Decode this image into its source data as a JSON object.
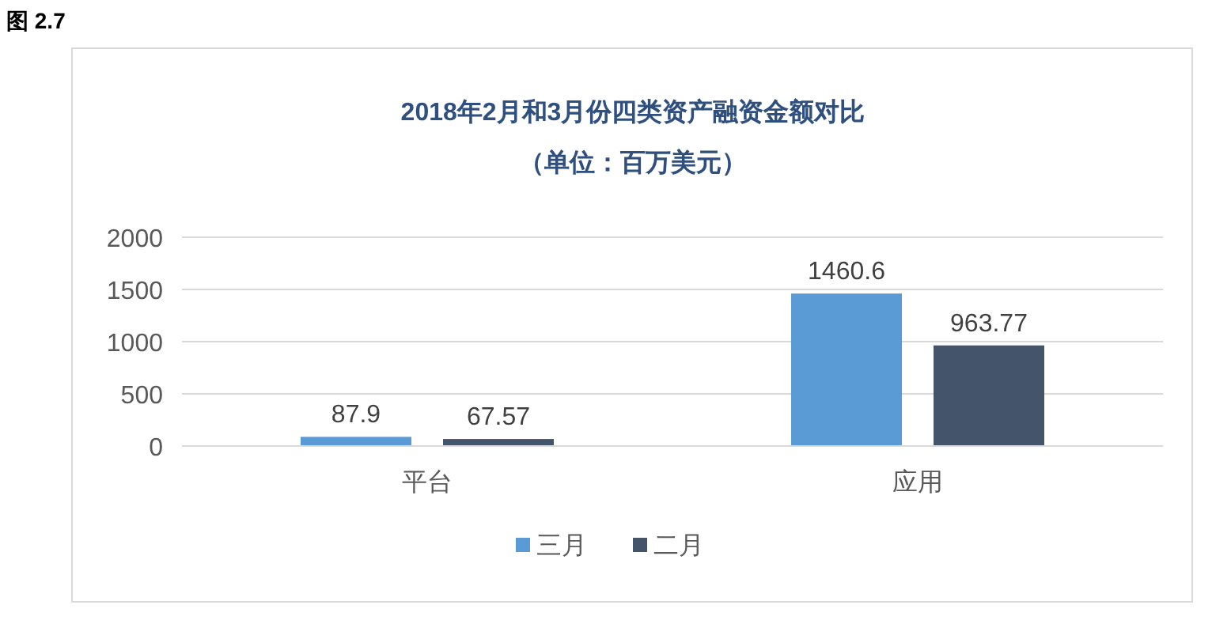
{
  "chart_data": {
    "type": "bar",
    "title": "2018年2月和3月份四类资产融资金额对比",
    "subtitle": "（单位：百万美元）",
    "annotations": [
      "图 2.7"
    ],
    "categories": [
      "平台",
      "应用"
    ],
    "series": [
      {
        "name": "三月",
        "color": "#5b9bd5",
        "values": [
          87.9,
          1460.6
        ]
      },
      {
        "name": "二月",
        "color": "#44546a",
        "values": [
          67.57,
          963.77
        ]
      }
    ],
    "ylim": [
      0,
      2000
    ],
    "yticks": [
      0,
      500,
      1000,
      1500,
      2000
    ],
    "grid": "y",
    "legend": "bottom",
    "data_labels": true
  }
}
